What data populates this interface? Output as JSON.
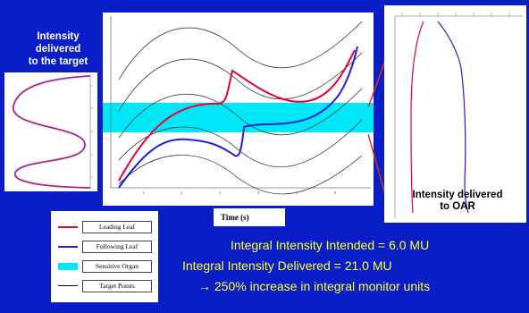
{
  "left_label": [
    "Intensity",
    "delivered",
    "to the target"
  ],
  "right_label": [
    "Intensity delivered",
    "to OAR"
  ],
  "x_axis_label": "Time (s)",
  "legend": [
    {
      "label": "Leading Leaf",
      "color": "#e8003a"
    },
    {
      "label": "Following Leaf",
      "color": "#2020e0"
    },
    {
      "label": "Sensitive Organ",
      "color": "#00e8f8"
    },
    {
      "label": "Target Points",
      "color": "#000000"
    }
  ],
  "results": {
    "intended": "Integral Intensity Intended = 6.0 MU",
    "delivered": "Integral Intensity Delivered = 21.0 MU",
    "increase": "→  250% increase in integral monitor units"
  },
  "colors": {
    "background": "#0a1ec8",
    "leading_leaf": "#e8003a",
    "following_leaf": "#2020e0",
    "sensitive_organ": "#00e8f8",
    "intensity_profile": "#b0208c",
    "callout": "#e03010",
    "result_text": "#ffff33"
  }
}
